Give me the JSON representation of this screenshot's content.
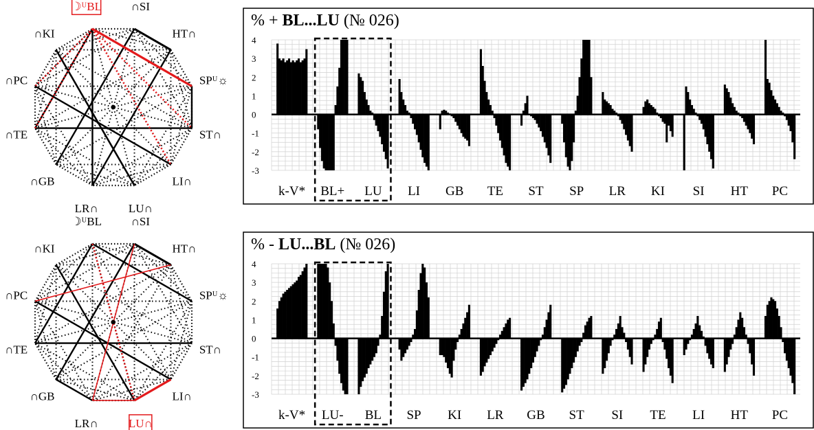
{
  "diagrams": [
    {
      "labels": [
        "∩SI",
        "HT∩",
        "☽ᵁBL",
        "SPᵁ☼",
        "∩KI",
        "ST∩",
        "∩PC",
        "LI∩",
        "∩TE",
        "LU∩",
        "∩GB",
        "LR∩"
      ],
      "highlighted_label": "☽ᵁBL",
      "line_colors": {
        "solid": "#000000",
        "highlight": "#e31a1c"
      }
    },
    {
      "labels": [
        "∩SI",
        "HT∩",
        "☽ᵁBL",
        "SPᵁ☼",
        "∩KI",
        "ST∩",
        "∩PC",
        "LI∩",
        "∩TE",
        "LU∩",
        "∩GB",
        "LR∩"
      ],
      "highlighted_label": "LU∩",
      "line_colors": {
        "solid": "#000000",
        "highlight": "#e31a1c"
      }
    }
  ],
  "chart_data": [
    {
      "type": "bar",
      "title_prefix": "%  + ",
      "title_bold": "BL...LU",
      "title_suffix": " (№ 026)",
      "ylim": [
        -3,
        4
      ],
      "yticks": [
        "4",
        "3",
        "2",
        "1",
        "0",
        "-1",
        "-2",
        "-3"
      ],
      "categories": [
        "k-V*",
        "BL+",
        "LU",
        "LI",
        "GB",
        "TE",
        "ST",
        "SP",
        "LR",
        "KI",
        "SI",
        "HT",
        "PC"
      ],
      "highlighted_categories": [
        "BL+",
        "LU"
      ],
      "bar_color": "#000000",
      "segments": [
        {
          "label": "k-V*",
          "values": [
            3.8,
            3.0,
            2.9,
            3.0,
            2.8,
            2.9,
            3.0,
            2.8,
            2.9,
            2.8,
            2.9,
            3.0,
            2.8,
            2.9,
            3.0,
            3.5
          ]
        },
        {
          "label": "BL+",
          "values": [
            -0.8,
            -1.8,
            -2.5,
            -2.9,
            -3.0,
            -3.0,
            -3.0,
            -3.0,
            -3.0,
            0.5,
            1.5,
            2.5,
            4.0,
            4.0,
            4.0,
            4.0
          ]
        },
        {
          "label": "LU",
          "values": [
            2.2,
            2.0,
            1.8,
            1.2,
            0.8,
            0.5,
            0.2,
            0.1,
            -0.3,
            -0.6,
            -0.9,
            -1.2,
            -1.6,
            -2.0,
            -2.4,
            -2.9
          ]
        },
        {
          "label": "LI",
          "values": [
            1.9,
            1.2,
            0.8,
            0.5,
            0.2,
            0.1,
            -0.2,
            -0.5,
            -0.8,
            -1.1,
            -1.5,
            -1.9,
            -2.3,
            -2.6,
            -2.8,
            -3.0
          ]
        },
        {
          "label": "GB",
          "values": [
            -0.8,
            0.2,
            0.25,
            0.2,
            0.1,
            0.05,
            -0.1,
            -0.2,
            -0.4,
            -0.6,
            -0.8,
            -1.0,
            -1.2,
            -1.3,
            -1.4,
            -1.7
          ]
        },
        {
          "label": "TE",
          "values": [
            3.5,
            2.6,
            1.8,
            1.2,
            0.8,
            0.5,
            0.2,
            -0.2,
            -0.6,
            -1.0,
            -1.4,
            -1.8,
            -2.2,
            -2.6,
            -2.8,
            -3.0
          ]
        },
        {
          "label": "ST",
          "values": [
            -0.6,
            0.2,
            0.6,
            1.0,
            0.0,
            -0.1,
            -0.2,
            -0.3,
            -0.5,
            -0.7,
            -0.9,
            -1.2,
            -1.5,
            -1.8,
            -2.2,
            -2.6
          ]
        },
        {
          "label": "SP",
          "values": [
            -0.5,
            -1.5,
            -2.3,
            -2.8,
            -3.0,
            -2.5,
            -1.5,
            0.2,
            1.0,
            2.0,
            3.0,
            4.0,
            4.0,
            4.0,
            4.0,
            2.0
          ]
        },
        {
          "label": "LR",
          "values": [
            1.2,
            0.8,
            0.7,
            0.6,
            0.5,
            0.3,
            0.2,
            0.1,
            -0.1,
            -0.3,
            -0.5,
            -0.8,
            -1.1,
            -1.4,
            -1.7,
            -2.0
          ]
        },
        {
          "label": "KI",
          "values": [
            0.4,
            0.7,
            0.8,
            0.6,
            0.5,
            0.4,
            0.3,
            0.1,
            -0.1,
            -0.2,
            -0.4,
            -0.5,
            -1.5,
            -0.6,
            -0.9,
            -1.2
          ]
        },
        {
          "label": "SI",
          "values": [
            -3.0,
            1.5,
            1.2,
            0.8,
            0.5,
            0.3,
            0.1,
            -0.1,
            -0.3,
            -0.5,
            -0.8,
            -1.2,
            -1.6,
            -2.0,
            -2.4,
            -2.9
          ]
        },
        {
          "label": "HT",
          "values": [
            1.6,
            1.4,
            1.2,
            0.9,
            0.6,
            0.4,
            0.2,
            0.1,
            -0.1,
            -0.2,
            -0.4,
            -0.6,
            -0.8,
            -1.0,
            -1.3,
            -1.6
          ]
        },
        {
          "label": "PC",
          "values": [
            4.0,
            1.9,
            1.7,
            1.3,
            1.0,
            0.8,
            0.6,
            0.4,
            0.2,
            0.1,
            -0.1,
            -0.3,
            -0.6,
            -0.9,
            -1.5,
            -2.4
          ]
        }
      ]
    },
    {
      "type": "bar",
      "title_prefix": "%  - ",
      "title_bold": "LU...BL",
      "title_suffix": " (№ 026)",
      "ylim": [
        -3,
        4
      ],
      "yticks": [
        "4",
        "3",
        "2",
        "1",
        "0",
        "-1",
        "-2",
        "-3"
      ],
      "categories": [
        "k-V*",
        "LU-",
        "BL",
        "SP",
        "KI",
        "LR",
        "GB",
        "ST",
        "SI",
        "TE",
        "LI",
        "HT",
        "PC"
      ],
      "highlighted_categories": [
        "LU-",
        "BL"
      ],
      "bar_color": "#000000",
      "segments": [
        {
          "label": "k-V*",
          "values": [
            1.6,
            2.0,
            2.2,
            2.4,
            2.5,
            2.6,
            2.7,
            2.8,
            2.9,
            3.0,
            3.1,
            3.3,
            3.4,
            3.6,
            3.8,
            4.0
          ]
        },
        {
          "label": "LU-",
          "values": [
            4.0,
            4.0,
            4.0,
            4.0,
            4.0,
            3.8,
            3.0,
            2.0,
            0.8,
            -0.4,
            -1.2,
            -1.9,
            -2.4,
            -2.8,
            -3.0,
            -3.0
          ]
        },
        {
          "label": "BL",
          "values": [
            -3.0,
            -2.6,
            -2.3,
            -2.1,
            -1.9,
            -1.6,
            -1.4,
            -1.2,
            -1.0,
            -0.8,
            -0.4,
            0.2,
            1.2,
            2.5,
            3.6,
            4.0
          ]
        },
        {
          "label": "SP",
          "values": [
            -0.6,
            -1.2,
            -1.0,
            -0.8,
            -0.6,
            -0.4,
            -0.2,
            0.2,
            0.5,
            1.5,
            2.6,
            3.5,
            4.0,
            3.8,
            3.0,
            2.2
          ]
        },
        {
          "label": "KI",
          "values": [
            -0.9,
            -0.9,
            -1.0,
            -1.3,
            -1.6,
            -1.9,
            -2.1,
            -1.2,
            -0.6,
            -0.2,
            0.2,
            0.5,
            0.8,
            1.1,
            1.4,
            1.8
          ]
        },
        {
          "label": "LR",
          "values": [
            -2.0,
            -1.8,
            -1.5,
            -1.3,
            -1.1,
            -0.9,
            -0.7,
            -0.5,
            -0.3,
            -0.1,
            0.2,
            0.4,
            0.6,
            0.8,
            1.0,
            1.1
          ]
        },
        {
          "label": "GB",
          "values": [
            -2.8,
            -2.6,
            -2.4,
            -2.2,
            -1.9,
            -1.6,
            -1.3,
            -1.0,
            -0.7,
            -0.4,
            -0.1,
            0.2,
            0.6,
            1.0,
            1.4,
            1.8
          ]
        },
        {
          "label": "ST",
          "values": [
            -2.9,
            -2.7,
            -2.5,
            -2.2,
            -1.9,
            -1.6,
            -1.3,
            -1.0,
            -0.7,
            -0.4,
            -0.2,
            0.3,
            0.7,
            0.9,
            1.1,
            1.2
          ]
        },
        {
          "label": "SI",
          "values": [
            -1.9,
            -1.6,
            -1.2,
            -0.8,
            -0.4,
            -0.1,
            0.2,
            0.5,
            0.8,
            1.2,
            0.6,
            0.3,
            -0.2,
            -0.6,
            -1.0,
            -1.4
          ]
        },
        {
          "label": "TE",
          "values": [
            -1.8,
            -1.4,
            -1.0,
            -0.6,
            -0.3,
            -0.1,
            0.2,
            0.5,
            0.9,
            1.1,
            -0.2,
            -0.6,
            -1.1,
            -1.6,
            -2.0,
            -2.4
          ]
        },
        {
          "label": "LI",
          "values": [
            -0.9,
            -0.6,
            -0.3,
            -0.1,
            0.2,
            0.5,
            0.8,
            1.2,
            0.7,
            0.4,
            0.1,
            -0.4,
            -0.8,
            -1.1,
            -1.4,
            -1.6
          ]
        },
        {
          "label": "HT",
          "values": [
            -1.8,
            -1.4,
            -1.0,
            -0.6,
            -0.3,
            0.2,
            0.6,
            1.0,
            1.4,
            1.1,
            0.6,
            0.2,
            -0.3,
            -0.8,
            -1.4,
            -2.0
          ]
        },
        {
          "label": "PC",
          "values": [
            1.2,
            1.8,
            2.0,
            2.2,
            2.1,
            2.0,
            1.6,
            1.2,
            0.6,
            -0.2,
            -0.8,
            -1.2,
            -1.6,
            -2.0,
            -2.4,
            -3.0
          ]
        }
      ]
    }
  ]
}
